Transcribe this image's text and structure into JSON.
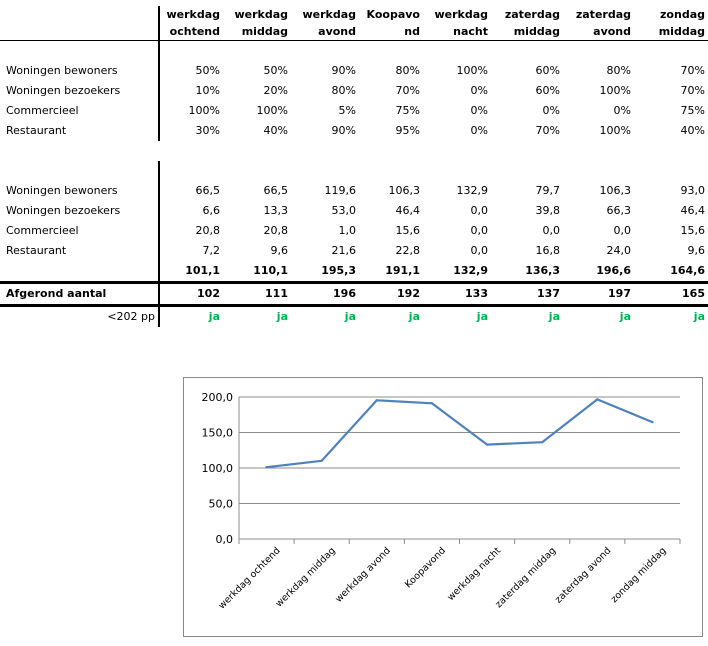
{
  "table": {
    "columns": [
      [
        "werkdag",
        "ochtend"
      ],
      [
        "werkdag",
        "middag"
      ],
      [
        "werkdag",
        "avond"
      ],
      [
        "Koopavo",
        "nd"
      ],
      [
        "werkdag",
        "nacht"
      ],
      [
        "zaterdag",
        "middag"
      ],
      [
        "zaterdag",
        "avond"
      ],
      [
        "zondag",
        "middag"
      ]
    ],
    "percent_rows": [
      {
        "label": "Woningen bewoners",
        "values": [
          "50%",
          "50%",
          "90%",
          "80%",
          "100%",
          "60%",
          "80%",
          "70%"
        ]
      },
      {
        "label": "Woningen bezoekers",
        "values": [
          "10%",
          "20%",
          "80%",
          "70%",
          "0%",
          "60%",
          "100%",
          "70%"
        ]
      },
      {
        "label": "Commercieel",
        "values": [
          "100%",
          "100%",
          "5%",
          "75%",
          "0%",
          "0%",
          "0%",
          "75%"
        ]
      },
      {
        "label": "Restaurant",
        "values": [
          "30%",
          "40%",
          "90%",
          "95%",
          "0%",
          "70%",
          "100%",
          "40%"
        ]
      }
    ],
    "value_rows": [
      {
        "label": "Woningen bewoners",
        "values": [
          "66,5",
          "66,5",
          "119,6",
          "106,3",
          "132,9",
          "79,7",
          "106,3",
          "93,0"
        ]
      },
      {
        "label": "Woningen bezoekers",
        "values": [
          "6,6",
          "13,3",
          "53,0",
          "46,4",
          "0,0",
          "39,8",
          "66,3",
          "46,4"
        ]
      },
      {
        "label": "Commercieel",
        "values": [
          "20,8",
          "20,8",
          "1,0",
          "15,6",
          "0,0",
          "0,0",
          "0,0",
          "15,6"
        ]
      },
      {
        "label": "Restaurant",
        "values": [
          "7,2",
          "9,6",
          "21,6",
          "22,8",
          "0,0",
          "16,8",
          "24,0",
          "9,6"
        ]
      }
    ],
    "totals": [
      "101,1",
      "110,1",
      "195,3",
      "191,1",
      "132,9",
      "136,3",
      "196,6",
      "164,6"
    ],
    "rounded": {
      "label": "Afgerond aantal",
      "values": [
        "102",
        "111",
        "196",
        "192",
        "133",
        "137",
        "197",
        "165"
      ]
    },
    "check": {
      "label": "<202 pp",
      "values": [
        "ja",
        "ja",
        "ja",
        "ja",
        "ja",
        "ja",
        "ja",
        "ja"
      ],
      "color": "#00b050"
    }
  },
  "chart_data": {
    "type": "line",
    "categories": [
      "werkdag ochtend",
      "werkdag middag",
      "werkdag avond",
      "Koopavond",
      "werkdag nacht",
      "zaterdag middag",
      "zaterdag avond",
      "zondag middag"
    ],
    "series": [
      {
        "values": [
          101.1,
          110.1,
          195.3,
          191.1,
          132.9,
          136.3,
          196.6,
          164.6
        ],
        "color": "#4f81bd"
      }
    ],
    "yticks": [
      "200,0",
      "150,0",
      "100,0",
      "50,0",
      "0,0"
    ],
    "ylim": [
      0,
      200
    ],
    "grid": true,
    "legend": "none"
  }
}
